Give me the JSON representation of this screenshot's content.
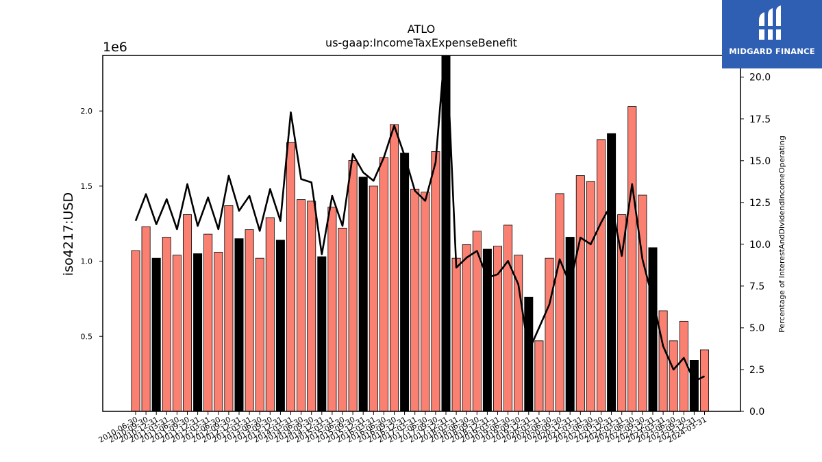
{
  "brand": {
    "name": "MIDGARD FINANCE",
    "background": "#2f5fb3",
    "text_color": "#ffffff"
  },
  "chart_data": {
    "type": "bar",
    "title": "ATLO",
    "subtitle": "us-gaap:IncomeTaxExpenseBenefit",
    "ylabel": "iso4217:USD",
    "y_offset_label": "1e6",
    "y2label": "Percentage of InterestAndDividendIncomeOperating",
    "ylim": [
      0,
      2.37
    ],
    "y2lim": [
      0,
      21.3
    ],
    "yticks": [
      "0.5",
      "1.0",
      "1.5",
      "2.0"
    ],
    "y2ticks": [
      "0.0",
      "2.5",
      "5.0",
      "7.5",
      "10.0",
      "12.5",
      "15.0",
      "17.5",
      "20.0"
    ],
    "bar_colors": {
      "quarter": "#fa8072",
      "annual": "#000000"
    },
    "categories": [
      "2010-06-30",
      "2010-09-30",
      "2010-12-31",
      "2011-03-31",
      "2011-06-30",
      "2011-09-30",
      "2011-12-31",
      "2012-03-31",
      "2012-06-30",
      "2012-09-30",
      "2012-12-31",
      "2013-03-31",
      "2013-06-30",
      "2013-09-30",
      "2013-12-31",
      "2014-03-31",
      "2014-06-30",
      "2014-09-30",
      "2014-12-31",
      "2015-03-31",
      "2015-06-30",
      "2015-09-30",
      "2015-12-31",
      "2016-03-31",
      "2016-06-30",
      "2016-09-30",
      "2016-12-31",
      "2017-03-31",
      "2017-06-30",
      "2017-09-30",
      "2017-12-31",
      "2018-03-31",
      "2018-06-30",
      "2018-09-30",
      "2018-12-31",
      "2019-03-31",
      "2019-06-30",
      "2019-09-30",
      "2019-12-31",
      "2020-03-31",
      "2020-06-30",
      "2020-09-30",
      "2020-12-31",
      "2021-03-31",
      "2021-06-30",
      "2021-09-30",
      "2021-12-31",
      "2022-03-31",
      "2022-06-30",
      "2022-09-30",
      "2022-12-31",
      "2023-03-31",
      "2023-06-30",
      "2023-09-30",
      "2023-12-31",
      "2024-03-31"
    ],
    "series": [
      {
        "type": "bar",
        "values": [
          1.07,
          1.23,
          1.02,
          1.16,
          1.04,
          1.31,
          1.05,
          1.18,
          1.06,
          1.37,
          1.15,
          1.21,
          1.02,
          1.29,
          1.14,
          1.79,
          1.41,
          1.4,
          1.03,
          1.36,
          1.22,
          1.67,
          1.56,
          1.5,
          1.69,
          1.91,
          1.72,
          1.48,
          1.46,
          1.73,
          2.37,
          1.02,
          1.11,
          1.2,
          1.08,
          1.1,
          1.24,
          1.04,
          0.76,
          0.47,
          1.02,
          1.45,
          1.16,
          1.57,
          1.53,
          1.81,
          1.85,
          1.31,
          2.03,
          1.44,
          1.09,
          0.67,
          0.47,
          0.6,
          0.34,
          0.41
        ],
        "annual": [
          false,
          false,
          true,
          false,
          false,
          false,
          true,
          false,
          false,
          false,
          true,
          false,
          false,
          false,
          true,
          false,
          false,
          false,
          true,
          false,
          false,
          false,
          true,
          false,
          false,
          false,
          true,
          false,
          false,
          false,
          true,
          false,
          false,
          false,
          true,
          false,
          false,
          false,
          true,
          false,
          false,
          false,
          true,
          false,
          false,
          false,
          true,
          false,
          false,
          false,
          true,
          false,
          false,
          false,
          true,
          false
        ]
      },
      {
        "type": "line",
        "axis": "right",
        "color": "#000000",
        "values": [
          11.4,
          13.0,
          11.2,
          12.7,
          10.9,
          13.6,
          11.1,
          12.8,
          10.9,
          14.1,
          12.0,
          12.9,
          10.8,
          13.3,
          11.4,
          17.9,
          13.9,
          13.7,
          9.4,
          12.9,
          11.1,
          15.4,
          14.3,
          13.8,
          15.2,
          17.1,
          15.3,
          13.2,
          12.6,
          14.9,
          22.5,
          8.6,
          9.2,
          9.6,
          8.0,
          8.2,
          9.0,
          7.6,
          3.6,
          5.0,
          6.4,
          9.1,
          7.6,
          10.4,
          10.0,
          11.3,
          12.4,
          9.3,
          13.6,
          9.1,
          6.7,
          3.9,
          2.5,
          3.2,
          1.8,
          2.1
        ]
      }
    ]
  }
}
